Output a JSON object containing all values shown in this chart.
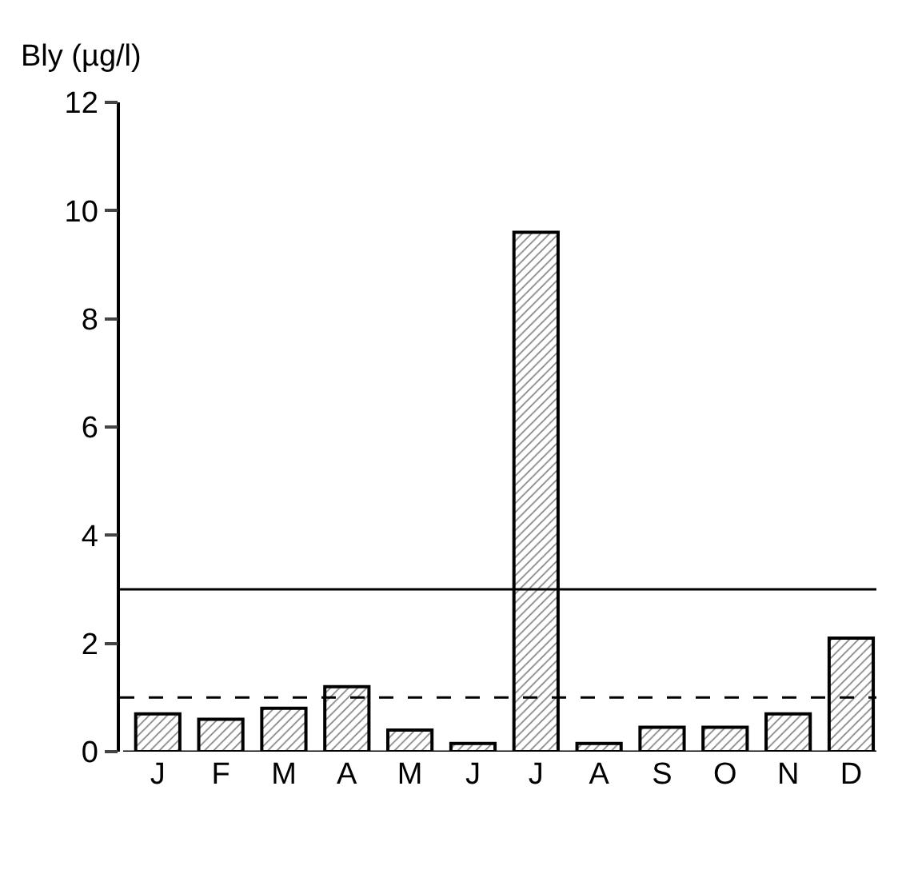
{
  "chart_data": {
    "type": "bar",
    "ylabel": "Bly (µg/l)",
    "categories": [
      "J",
      "F",
      "M",
      "A",
      "M",
      "J",
      "J",
      "A",
      "S",
      "O",
      "N",
      "D"
    ],
    "values": [
      0.7,
      0.6,
      0.8,
      1.2,
      0.4,
      0.15,
      9.6,
      0.15,
      0.45,
      0.45,
      0.7,
      2.1
    ],
    "color": "#000000",
    "ylim": [
      0,
      12
    ],
    "yticks": [
      0,
      2,
      4,
      6,
      8,
      10,
      12
    ],
    "ref_lines": [
      {
        "axis": "y",
        "value": 3,
        "line_style": "solid",
        "color": "#000000"
      },
      {
        "axis": "y",
        "value": 1,
        "line_style": "dashed",
        "color": "#000000"
      }
    ]
  }
}
